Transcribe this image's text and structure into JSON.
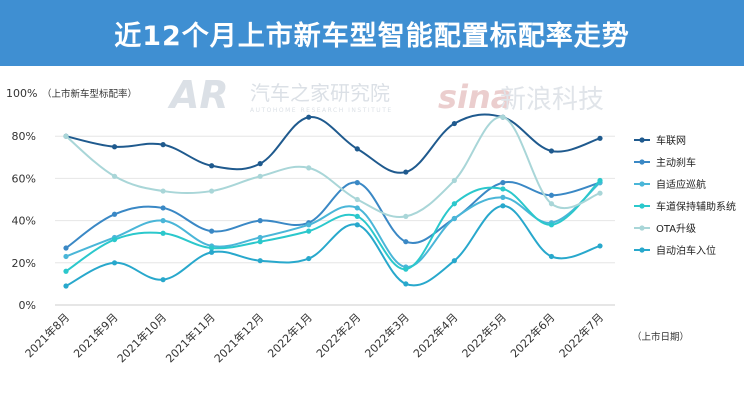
{
  "header": {
    "title": "近12个月上市新车型智能配置标配率走势"
  },
  "watermarks": {
    "autohome_logo": "AR",
    "autohome_cn": "汽车之家研究院",
    "autohome_en": "AUTOHOME RESEARCH INSTITUTE",
    "sina_logo": "sina",
    "sina_cn": "新浪科技"
  },
  "chart_data": {
    "type": "line",
    "ylabel": "（上市新车型标配率）",
    "xlabel": "（上市日期）",
    "ylim": [
      0,
      100
    ],
    "yticks": [
      0,
      20,
      40,
      60,
      80,
      100
    ],
    "ytick_labels": [
      "0%",
      "20%",
      "40%",
      "60%",
      "80%",
      "100%"
    ],
    "categories": [
      "2021年8月",
      "2021年9月",
      "2021年10月",
      "2021年11月",
      "2021年12月",
      "2022年1月",
      "2022年2月",
      "2022年3月",
      "2022年4月",
      "2022年5月",
      "2022年6月",
      "2022年7月"
    ],
    "legend_position": "right",
    "series": [
      {
        "name": "车联网",
        "color": "#1f5a8e",
        "values": [
          80,
          75,
          76,
          66,
          67,
          89,
          74,
          63,
          86,
          89,
          73,
          79
        ]
      },
      {
        "name": "主动刹车",
        "color": "#3a88c5",
        "values": [
          27,
          43,
          46,
          35,
          40,
          39,
          58,
          30,
          41,
          58,
          52,
          58
        ]
      },
      {
        "name": "自适应巡航",
        "color": "#4ab6d8",
        "values": [
          23,
          32,
          40,
          28,
          32,
          38,
          46,
          18,
          41,
          51,
          39,
          58
        ]
      },
      {
        "name": "车道保持辅助系统",
        "color": "#2bc8cc",
        "values": [
          16,
          31,
          34,
          27,
          30,
          35,
          42,
          17,
          48,
          55,
          38,
          59
        ]
      },
      {
        "name": "OTA升级",
        "color": "#a9d6d8",
        "values": [
          80,
          61,
          54,
          54,
          61,
          65,
          50,
          42,
          59,
          89,
          48,
          53
        ]
      },
      {
        "name": "自动泊车入位",
        "color": "#28a8cc",
        "values": [
          9,
          20,
          12,
          25,
          21,
          22,
          38,
          10,
          21,
          47,
          23,
          28
        ]
      }
    ]
  }
}
